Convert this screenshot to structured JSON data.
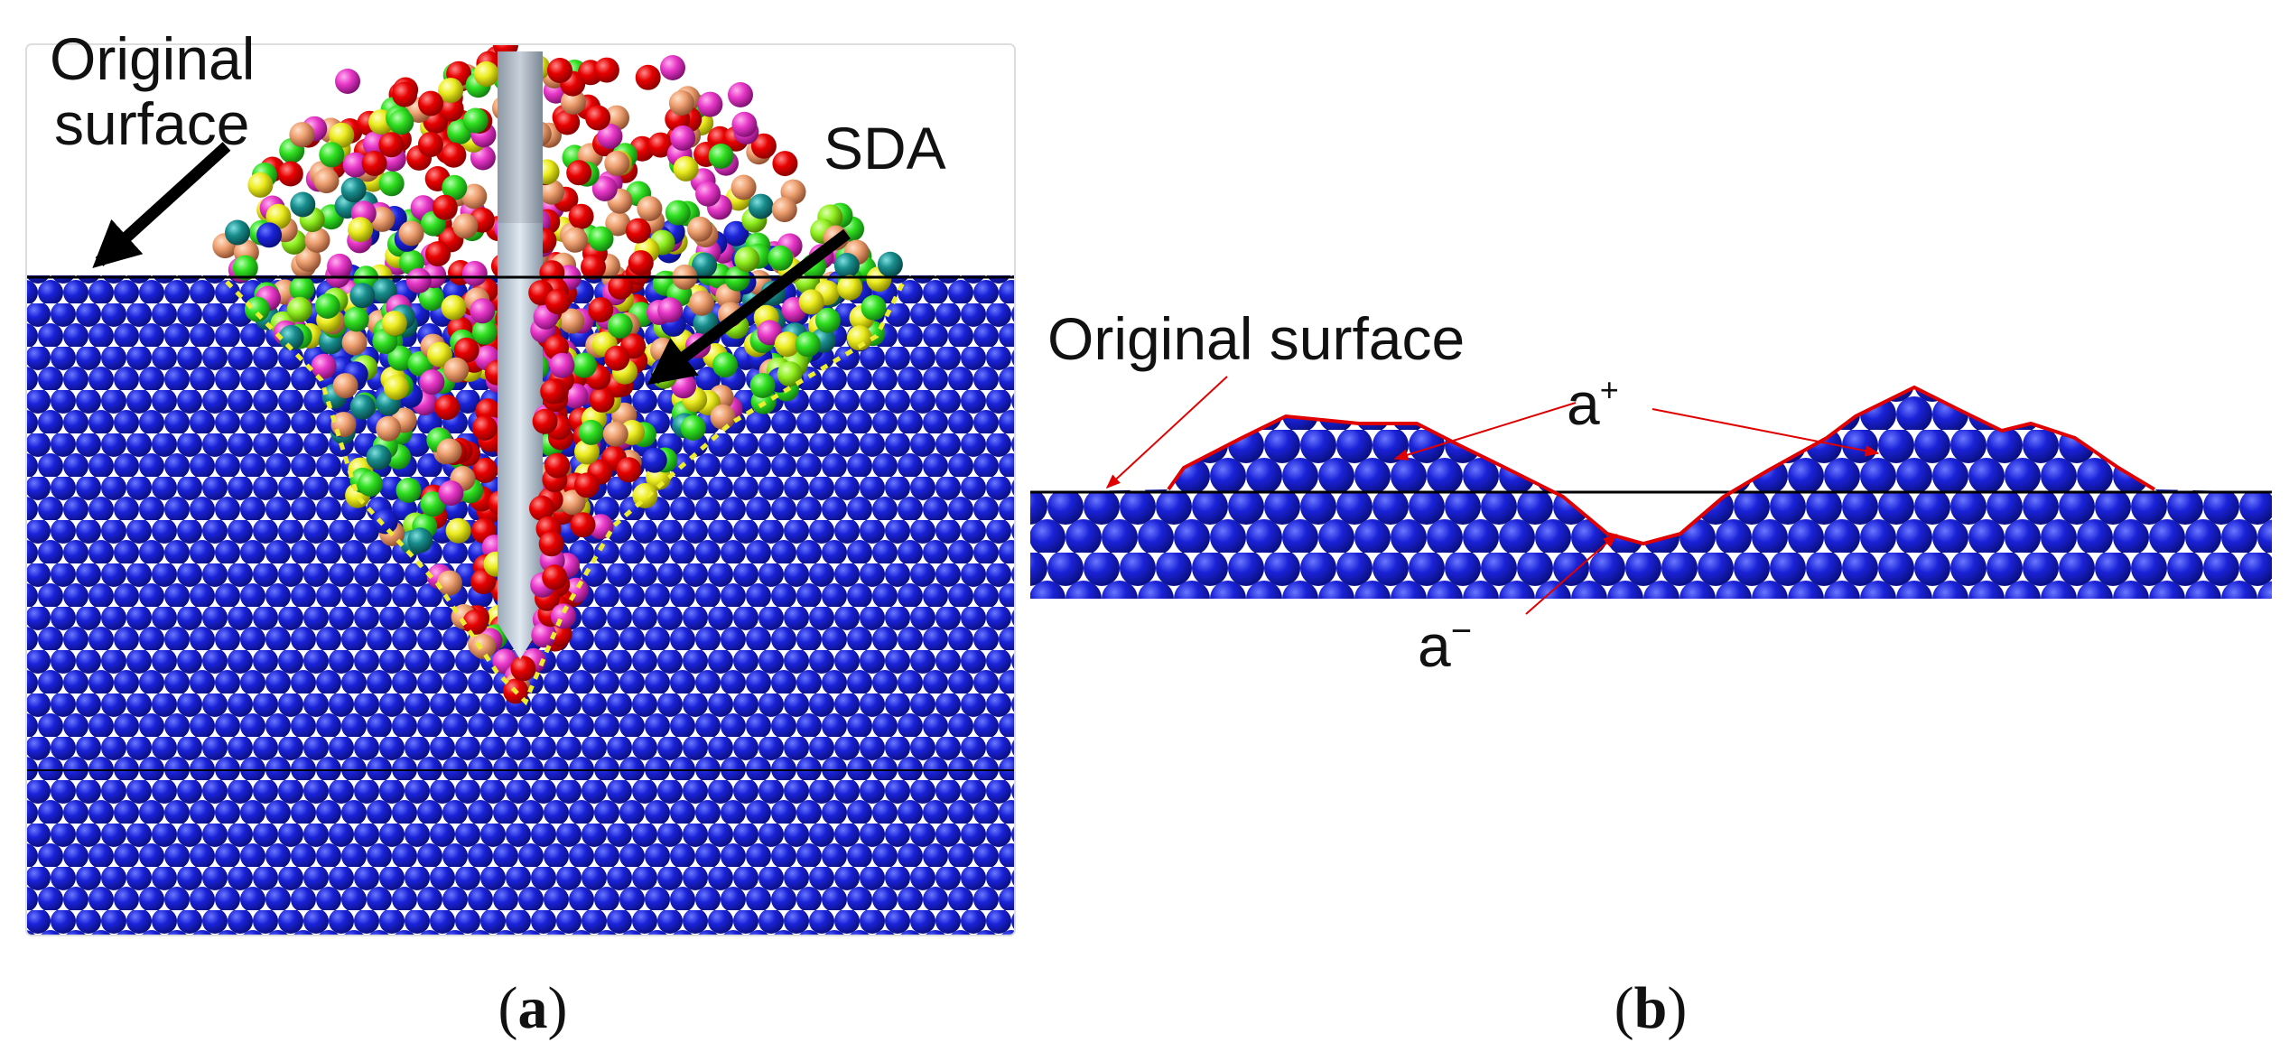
{
  "panel_a": {
    "original_surface": [
      "Original",
      "surface"
    ],
    "sda": "SDA",
    "caption": {
      "open": "(",
      "letter": "a",
      "close": ")"
    }
  },
  "panel_b": {
    "original_surface": "Original surface",
    "a_plus": {
      "base": "a",
      "sup": "+"
    },
    "a_minus": {
      "base": "a",
      "sup": "−"
    },
    "caption": {
      "open": "(",
      "letter": "b",
      "close": ")"
    }
  }
}
